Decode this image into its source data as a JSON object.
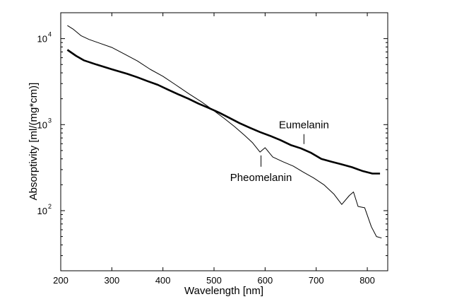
{
  "chart_data": {
    "type": "line",
    "title": "",
    "xlabel": "Wavelength [nm]",
    "ylabel": "Absorptivity [ml/(mg*cm)]",
    "xlim": [
      200,
      840
    ],
    "ylim": [
      20,
      20000
    ],
    "yscale": "log",
    "grid": false,
    "legend": "none",
    "x_ticks": [
      200,
      300,
      400,
      500,
      600,
      700,
      800
    ],
    "y_ticks": [
      {
        "value": 100,
        "base": "10",
        "exp": "2"
      },
      {
        "value": 1000,
        "base": "10",
        "exp": "3"
      },
      {
        "value": 10000,
        "base": "10",
        "exp": "4"
      }
    ],
    "series": [
      {
        "name": "Eumelanin",
        "color": "#000000",
        "style": "thick",
        "x": [
          213,
          230,
          245,
          270,
          300,
          330,
          350,
          370,
          390,
          410,
          430,
          450,
          470,
          490,
          510,
          530,
          550,
          570,
          590,
          610,
          630,
          650,
          670,
          690,
          710,
          730,
          750,
          770,
          790,
          810,
          825
        ],
        "y": [
          7400,
          6300,
          5600,
          5000,
          4400,
          3900,
          3550,
          3200,
          2900,
          2550,
          2250,
          2000,
          1750,
          1560,
          1380,
          1200,
          1040,
          920,
          820,
          740,
          660,
          580,
          530,
          470,
          400,
          370,
          345,
          320,
          290,
          270,
          270
        ]
      },
      {
        "name": "Pheomelanin",
        "color": "#000000",
        "style": "thin",
        "x": [
          213,
          225,
          240,
          255,
          275,
          300,
          325,
          350,
          375,
          400,
          425,
          450,
          475,
          500,
          520,
          540,
          560,
          575,
          590,
          600,
          615,
          635,
          655,
          675,
          695,
          715,
          735,
          750,
          765,
          773,
          782,
          795,
          808,
          818,
          828
        ],
        "y": [
          14200,
          12800,
          10800,
          9800,
          8900,
          7900,
          6600,
          5500,
          4400,
          3650,
          2900,
          2300,
          1850,
          1450,
          1180,
          950,
          750,
          620,
          480,
          540,
          420,
          370,
          330,
          280,
          240,
          200,
          155,
          118,
          150,
          165,
          112,
          108,
          65,
          50,
          48
        ]
      }
    ],
    "annotations": [
      {
        "text": "Eumelanin",
        "series": "Eumelanin",
        "x": 676
      },
      {
        "text": "Pheomelanin",
        "series": "Pheomelanin",
        "x": 592
      }
    ]
  }
}
